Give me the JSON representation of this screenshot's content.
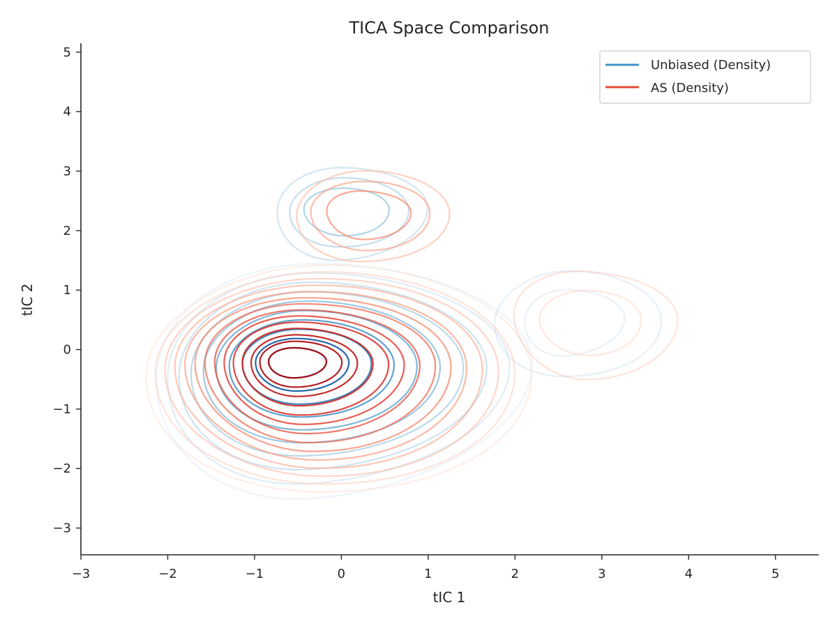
{
  "chart_data": {
    "type": "contour",
    "title": "TICA Space Comparison",
    "xlabel": "tIC 1",
    "ylabel": "tIC 2",
    "xlim": [
      -3.0,
      5.5
    ],
    "ylim": [
      -3.45,
      5.15
    ],
    "xticks": [
      -3,
      -2,
      -1,
      0,
      1,
      2,
      3,
      4,
      5
    ],
    "yticks": [
      -3,
      -2,
      -1,
      0,
      1,
      2,
      3,
      4,
      5
    ],
    "xtick_labels": [
      "−3",
      "−2",
      "−1",
      "0",
      "1",
      "2",
      "3",
      "4",
      "5"
    ],
    "ytick_labels": [
      "−3",
      "−2",
      "−1",
      "0",
      "1",
      "2",
      "3",
      "4",
      "5"
    ],
    "grid": false,
    "legend": {
      "placement": "top-right"
    },
    "series": [
      {
        "name": "Unbiased (Density)",
        "color": "#4292c6",
        "colormap": "Blues",
        "peaks": [
          {
            "x": -0.55,
            "y": -0.2
          },
          {
            "x": 0.0,
            "y": 2.35
          },
          {
            "x": 2.6,
            "y": 0.5
          }
        ],
        "levels": 10
      },
      {
        "name": "AS (Density)",
        "color": "#e34a33",
        "colormap": "Reds",
        "peaks": [
          {
            "x": -0.55,
            "y": -0.2
          },
          {
            "x": 0.25,
            "y": 2.3
          },
          {
            "x": 2.8,
            "y": 0.5
          }
        ],
        "levels": 14
      }
    ]
  }
}
